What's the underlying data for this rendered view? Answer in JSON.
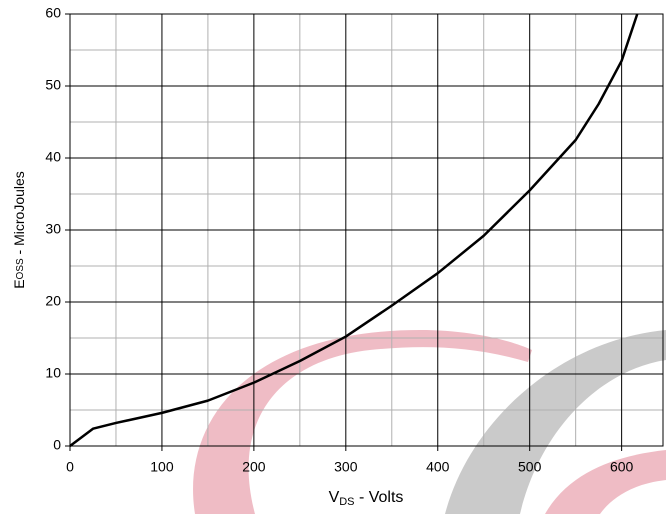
{
  "chart_data": {
    "type": "line",
    "x_label": {
      "main": "V",
      "sub": "DS",
      "rest": " - Volts"
    },
    "y_label": {
      "main": "E",
      "sub": "OSS",
      "rest": " - MicroJoules"
    },
    "series": [
      {
        "name": "Eoss",
        "color": "#000000",
        "x": [
          0,
          25,
          50,
          100,
          150,
          200,
          250,
          300,
          350,
          400,
          450,
          500,
          550,
          575,
          600,
          617
        ],
        "values": [
          0,
          2.4,
          3.2,
          4.6,
          6.3,
          8.8,
          11.8,
          15.2,
          19.5,
          24,
          29.2,
          35.5,
          42.5,
          47.5,
          53.5,
          60
        ]
      }
    ],
    "xlim": [
      0,
      645
    ],
    "ylim": [
      0,
      60
    ],
    "xticks": [
      0,
      100,
      200,
      300,
      400,
      500,
      600
    ],
    "yticks": [
      0,
      10,
      20,
      30,
      40,
      50,
      60
    ],
    "x_minor_grid": [
      50,
      150,
      250,
      350,
      450,
      550
    ],
    "y_minor_grid": [
      5,
      15,
      25,
      35,
      45,
      55
    ],
    "grid": true
  }
}
